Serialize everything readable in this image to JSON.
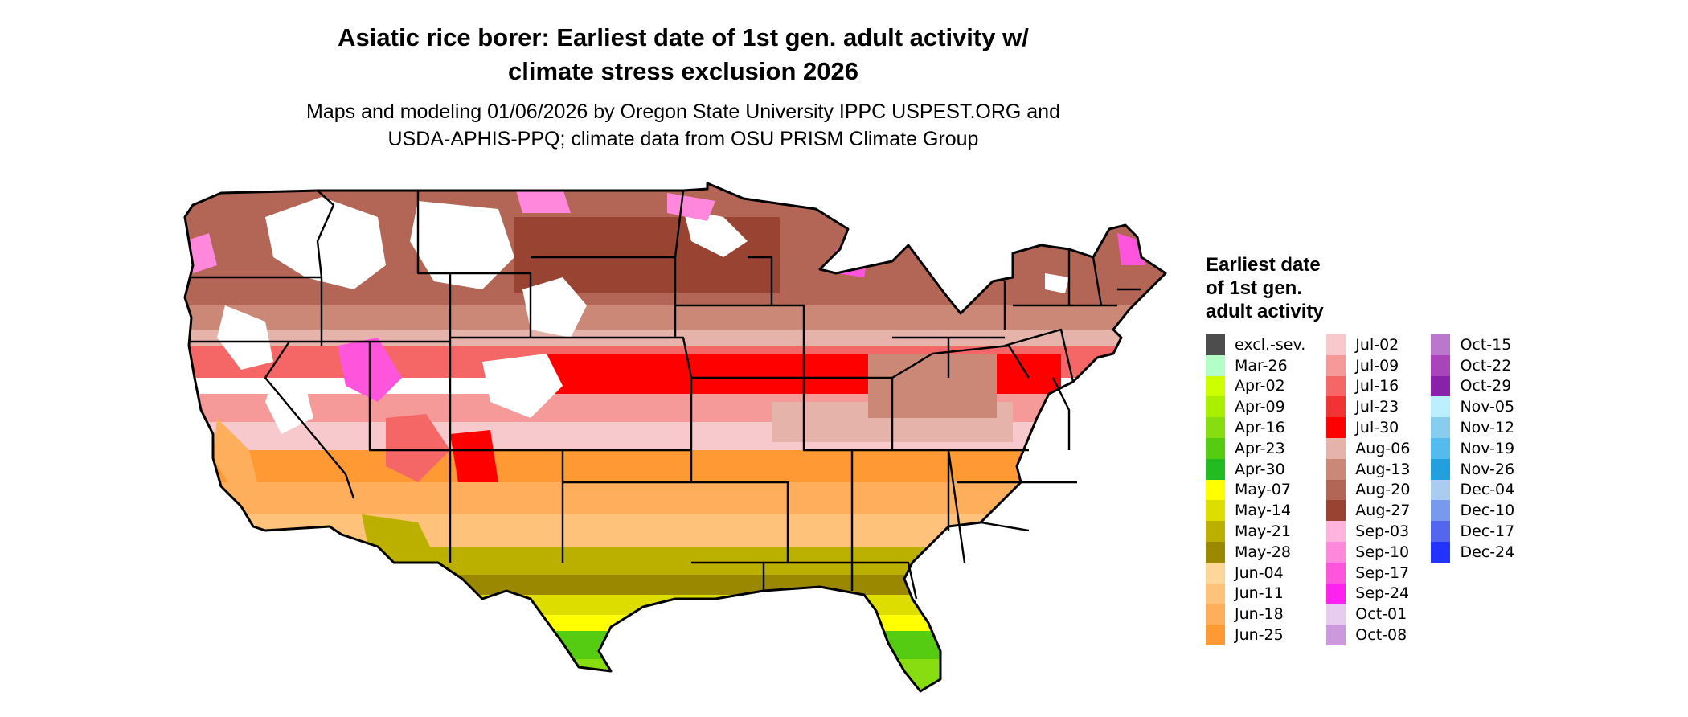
{
  "title_line1": "Asiatic rice borer: Earliest date of 1st gen. adult activity w/",
  "title_line2": "climate stress exclusion 2026",
  "subtitle_line1": "Maps and modeling 01/06/2026 by Oregon State University IPPC USPEST.ORG and",
  "subtitle_line2": "USDA-APHIS-PPQ; climate data from OSU PRISM Climate Group",
  "legend": {
    "title_line1": "Earliest date",
    "title_line2": "of 1st gen.",
    "title_line3": "adult activity",
    "columns": [
      [
        {
          "label": "excl.-sev.",
          "color": "#4d4d4d"
        },
        {
          "label": "Mar-26",
          "color": "#b3ffc8"
        },
        {
          "label": "Apr-02",
          "color": "#ccff00"
        },
        {
          "label": "Apr-09",
          "color": "#aaee00"
        },
        {
          "label": "Apr-16",
          "color": "#88dd11"
        },
        {
          "label": "Apr-23",
          "color": "#55cc11"
        },
        {
          "label": "Apr-30",
          "color": "#22bb22"
        },
        {
          "label": "May-07",
          "color": "#ffff00"
        },
        {
          "label": "May-14",
          "color": "#dddd00"
        },
        {
          "label": "May-21",
          "color": "#bbb000"
        },
        {
          "label": "May-28",
          "color": "#998800"
        },
        {
          "label": "Jun-04",
          "color": "#ffd699"
        },
        {
          "label": "Jun-11",
          "color": "#ffc27a"
        },
        {
          "label": "Jun-18",
          "color": "#ffae5c"
        },
        {
          "label": "Jun-25",
          "color": "#ff9933"
        }
      ],
      [
        {
          "label": "Jul-02",
          "color": "#f7c9cc"
        },
        {
          "label": "Jul-09",
          "color": "#f59999"
        },
        {
          "label": "Jul-16",
          "color": "#f56666"
        },
        {
          "label": "Jul-23",
          "color": "#f23333"
        },
        {
          "label": "Jul-30",
          "color": "#ff0000"
        },
        {
          "label": "Aug-06",
          "color": "#e6b3aa"
        },
        {
          "label": "Aug-13",
          "color": "#cc8877"
        },
        {
          "label": "Aug-20",
          "color": "#b36655"
        },
        {
          "label": "Aug-27",
          "color": "#994433"
        },
        {
          "label": "Sep-03",
          "color": "#ffb3dd"
        },
        {
          "label": "Sep-10",
          "color": "#ff88dd"
        },
        {
          "label": "Sep-17",
          "color": "#ff55dd"
        },
        {
          "label": "Sep-24",
          "color": "#ff22ee"
        },
        {
          "label": "Oct-01",
          "color": "#e6ccee"
        },
        {
          "label": "Oct-08",
          "color": "#cc99dd"
        }
      ],
      [
        {
          "label": "Oct-15",
          "color": "#bb77cc"
        },
        {
          "label": "Oct-22",
          "color": "#aa44bb"
        },
        {
          "label": "Oct-29",
          "color": "#8822aa"
        },
        {
          "label": "Nov-05",
          "color": "#bbeeff"
        },
        {
          "label": "Nov-12",
          "color": "#88ccee"
        },
        {
          "label": "Nov-19",
          "color": "#55bbee"
        },
        {
          "label": "Nov-26",
          "color": "#22a0dd"
        },
        {
          "label": "Dec-04",
          "color": "#aaccee"
        },
        {
          "label": "Dec-10",
          "color": "#7799ee"
        },
        {
          "label": "Dec-17",
          "color": "#5566ee"
        },
        {
          "label": "Dec-24",
          "color": "#2233ff"
        }
      ]
    ]
  }
}
